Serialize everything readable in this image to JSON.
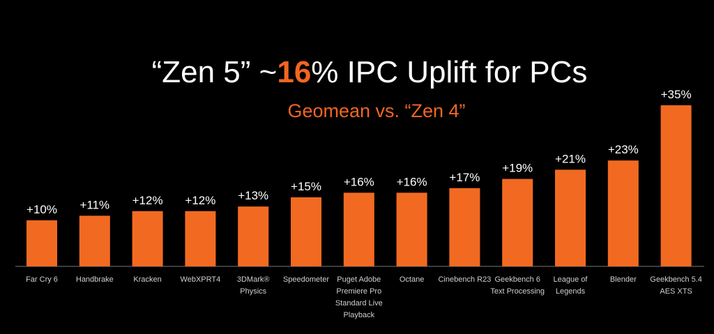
{
  "chart_data": {
    "type": "bar",
    "title": [
      "“Zen 5” ~",
      "16",
      "% IPC Uplift for PCs"
    ],
    "title_highlight_color": "#f26522",
    "subtitle": "Geomean  vs. “Zen 4”",
    "categories": [
      [
        "Far Cry 6"
      ],
      [
        "Handbrake"
      ],
      [
        "Kracken"
      ],
      [
        "WebXPRT4"
      ],
      [
        "3DMark®",
        "Physics"
      ],
      [
        "Speedometer"
      ],
      [
        "Puget Adobe",
        "Premiere Pro",
        "Standard Live",
        "Playback"
      ],
      [
        "Octane"
      ],
      [
        "Cinebench R23"
      ],
      [
        "Geekbench 6",
        "Text Processing"
      ],
      [
        "League of",
        "Legends"
      ],
      [
        "Blender"
      ],
      [
        "Geekbench 5.4",
        "AES XTS"
      ]
    ],
    "values": [
      10,
      11,
      12,
      12,
      13,
      15,
      16,
      16,
      17,
      19,
      21,
      23,
      35
    ],
    "value_labels": [
      "+10%",
      "+11%",
      "+12%",
      "+12%",
      "+13%",
      "+15%",
      "+16%",
      "+16%",
      "+17%",
      "+19%",
      "+21%",
      "+23%",
      "+35%"
    ],
    "color": "#f26a21"
  }
}
